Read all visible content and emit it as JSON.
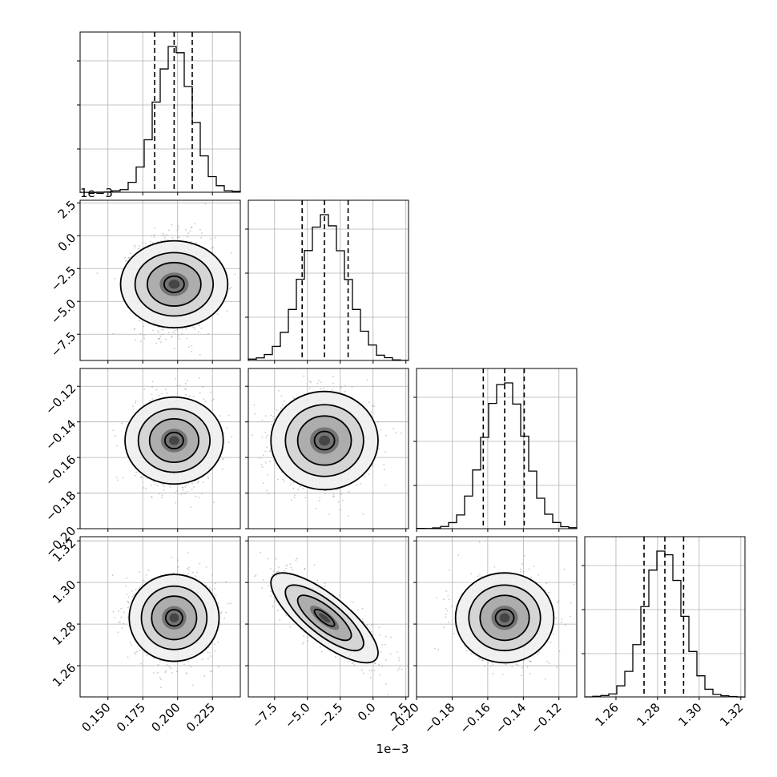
{
  "chart_data": {
    "type": "corner",
    "grid": true,
    "parameters": [
      {
        "range": [
          0.13,
          0.245
        ],
        "ticks": [
          0.15,
          0.175,
          0.2,
          0.225
        ],
        "tick_labels": [
          "0.150",
          "0.175",
          "0.200",
          "0.225"
        ],
        "mean": 0.1975,
        "std": 0.013,
        "quantiles": [
          0.1835,
          0.1975,
          0.2105
        ]
      },
      {
        "range": [
          -9.5,
          2.7
        ],
        "ticks": [
          -7.5,
          -5.0,
          -2.5,
          0.0,
          2.5
        ],
        "tick_labels": [
          "−7.5",
          "−5.0",
          "−2.5",
          "0.0",
          "2.5"
        ],
        "offset_text": "1e−3",
        "mean": -3.7,
        "std": 1.7,
        "quantiles": [
          -5.4,
          -3.7,
          -1.9
        ]
      },
      {
        "range": [
          -0.2,
          -0.11
        ],
        "ticks": [
          -0.2,
          -0.18,
          -0.16,
          -0.14,
          -0.12
        ],
        "tick_labels": [
          "−0.20",
          "−0.18",
          "−0.16",
          "−0.14",
          "−0.12"
        ],
        "mean": -0.1505,
        "std": 0.0115,
        "quantiles": [
          -0.1625,
          -0.1505,
          -0.1395
        ]
      },
      {
        "range": [
          1.245,
          1.322
        ],
        "ticks": [
          1.26,
          1.28,
          1.3,
          1.32
        ],
        "tick_labels": [
          "1.26",
          "1.28",
          "1.30",
          "1.32"
        ],
        "mean": 1.283,
        "std": 0.009,
        "quantiles": [
          1.2735,
          1.2835,
          1.2925
        ]
      }
    ],
    "correlations": [
      {
        "pair": [
          1,
          3
        ],
        "rho": -0.78
      }
    ],
    "histogram_bins": 20,
    "contour_levels": 4
  }
}
